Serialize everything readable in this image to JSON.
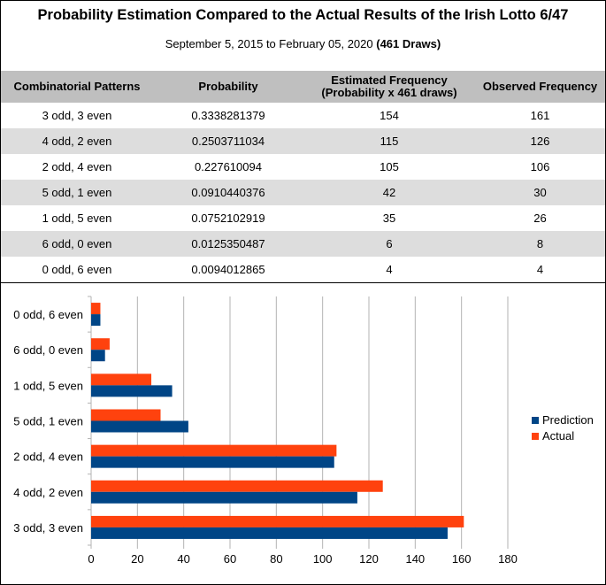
{
  "title": "Probability Estimation Compared to the Actual Results of the Irish Lotto 6/47",
  "subtitle_prefix": "September 5, 2015 to February 05, 2020 ",
  "subtitle_bold": "(461 Draws)",
  "table": {
    "headers": [
      "Combinatorial Patterns",
      "Probability",
      "Estimated Frequency",
      "(Probability x 461 draws)",
      "Observed Frequency"
    ],
    "rows": [
      [
        "3 odd, 3 even",
        "0.3338281379",
        "154",
        "161"
      ],
      [
        "4 odd, 2 even",
        "0.2503711034",
        "115",
        "126"
      ],
      [
        "2 odd, 4 even",
        "0.227610094",
        "105",
        "106"
      ],
      [
        "5 odd, 1 even",
        "0.0910440376",
        "42",
        "30"
      ],
      [
        "1 odd, 5 even",
        "0.0752102919",
        "35",
        "26"
      ],
      [
        "6 odd, 0 even",
        "0.0125350487",
        "6",
        "8"
      ],
      [
        "0 odd, 6 even",
        "0.0094012865",
        "4",
        "4"
      ]
    ]
  },
  "chart_data": {
    "type": "bar",
    "orientation": "horizontal",
    "categories": [
      "3 odd, 3 even",
      "4 odd, 2 even",
      "2 odd, 4 even",
      "5 odd, 1 even",
      "1 odd, 5 even",
      "6 odd, 0 even",
      "0 odd, 6 even"
    ],
    "series": [
      {
        "name": "Prediction",
        "values": [
          154,
          115,
          105,
          42,
          35,
          6,
          4
        ],
        "color": "#004586"
      },
      {
        "name": "Actual",
        "values": [
          161,
          126,
          106,
          30,
          26,
          8,
          4
        ],
        "color": "#ff420e"
      }
    ],
    "xlim": [
      0,
      180
    ],
    "xticks": [
      0,
      20,
      40,
      60,
      80,
      100,
      120,
      140,
      160,
      180
    ],
    "grid": true,
    "legend": "right"
  }
}
